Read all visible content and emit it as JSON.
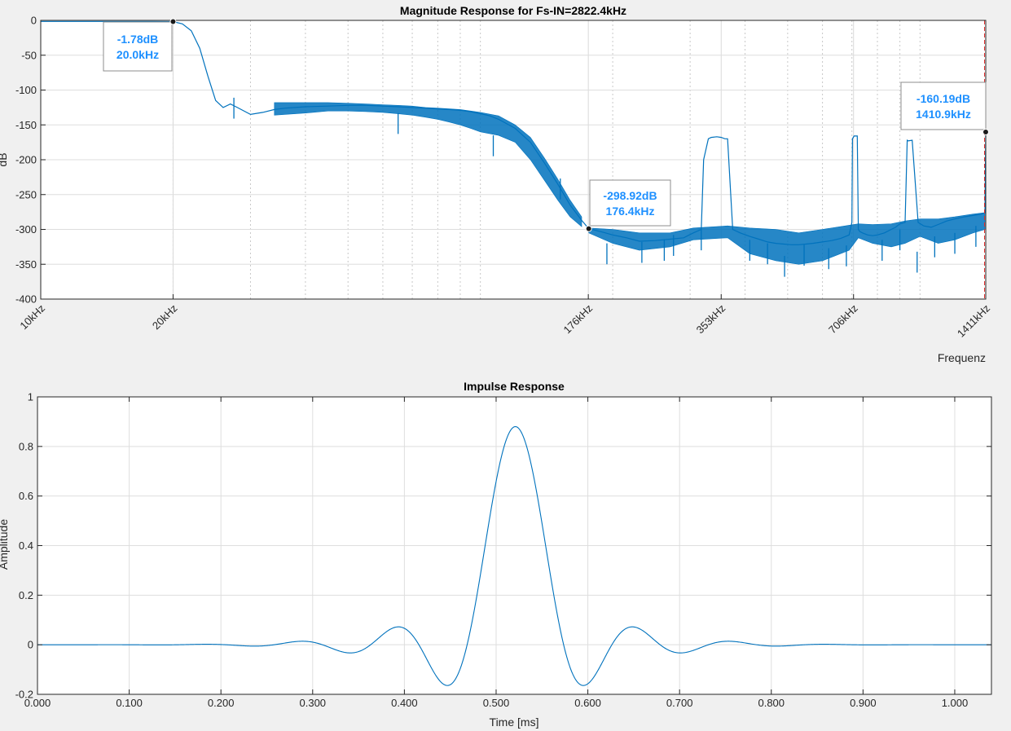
{
  "colors": {
    "line": "#0072bd",
    "datatip_text": "#1e90ff",
    "cursor": "#e03030",
    "background": "#f0f0f0",
    "axes_bg": "#ffffff"
  },
  "chart_data": [
    {
      "id": "magnitude",
      "type": "line",
      "title": "Magnitude Response for Fs-IN=2822.4kHz",
      "xlabel": "Frequenz",
      "ylabel": "dB",
      "x_scale": "log",
      "xlim_khz": [
        10,
        1411
      ],
      "ylim": [
        -400,
        0
      ],
      "y_ticks": [
        0,
        -50,
        -100,
        -150,
        -200,
        -250,
        -300,
        -350,
        -400
      ],
      "x_ticks": [
        {
          "value": 10,
          "label": "10kHz"
        },
        {
          "value": 20,
          "label": "20kHz"
        },
        {
          "value": 176,
          "label": "176kHz"
        },
        {
          "value": 353,
          "label": "353kHz"
        },
        {
          "value": 706,
          "label": "706kHz"
        },
        {
          "value": 1411,
          "label": "1411kHz"
        }
      ],
      "grid": true,
      "datatips": [
        {
          "x": 20.0,
          "y": -1.78,
          "db": "-1.78dB",
          "freq": "20.0kHz"
        },
        {
          "x": 176.4,
          "y": -298.92,
          "db": "-298.92dB",
          "freq": "176.4kHz"
        },
        {
          "x": 1410.9,
          "y": -160.19,
          "db": "-160.19dB",
          "freq": "1410.9kHz"
        }
      ],
      "series": [
        {
          "x": [
            10,
            15,
            18,
            20,
            21,
            22,
            23,
            24,
            25,
            26,
            27,
            28,
            30,
            32,
            34,
            36,
            40,
            45,
            50,
            55,
            60,
            65,
            70,
            75,
            80,
            85,
            90,
            95,
            100,
            105,
            110,
            120,
            130,
            140,
            150,
            160,
            170,
            176.4
          ],
          "y": [
            -1.5,
            -1.5,
            -1.6,
            -1.78,
            -5,
            -15,
            -40,
            -80,
            -115,
            -125,
            -120,
            -125,
            -135,
            -132,
            -128,
            -126,
            -124,
            -123,
            -122,
            -122,
            -123,
            -124,
            -125,
            -126,
            -127,
            -128,
            -129,
            -131,
            -134,
            -137,
            -142,
            -155,
            -175,
            -205,
            -235,
            -265,
            -287,
            -298.92
          ]
        },
        {
          "x": [
            176.4,
            190,
            200,
            215,
            230,
            250,
            270,
            290,
            305,
            318,
            322,
            330,
            335,
            345,
            353,
            360,
            365,
            375,
            390,
            410,
            430,
            450,
            470,
            490,
            510,
            530,
            550,
            570,
            600,
            630,
            660,
            690,
            700,
            702,
            708,
            720,
            724,
            730,
            740,
            760,
            780,
            800,
            830,
            860,
            880,
            900,
            925,
            935,
            940,
            960,
            990,
            1020,
            1060,
            1100,
            1150,
            1200,
            1260,
            1320,
            1380,
            1405,
            1410.9
          ],
          "y": [
            -298.92,
            -304,
            -308,
            -312,
            -317,
            -316,
            -314,
            -312,
            -305,
            -300,
            -200,
            -170,
            -168,
            -167,
            -168,
            -170,
            -170,
            -300,
            -305,
            -310,
            -314,
            -318,
            -320,
            -321,
            -322,
            -322,
            -321,
            -320,
            -318,
            -316,
            -313,
            -308,
            -290,
            -170,
            -166,
            -166,
            -300,
            -303,
            -305,
            -308,
            -309,
            -308,
            -305,
            -300,
            -297,
            -292,
            -290,
            -172,
            -173,
            -172,
            -290,
            -295,
            -297,
            -293,
            -288,
            -285,
            -282,
            -280,
            -278,
            -276,
            -160.19
          ]
        }
      ],
      "envelope": [
        {
          "x": [
            34,
            40,
            45,
            50,
            55,
            60,
            65,
            70,
            75,
            80,
            85,
            90,
            95,
            100,
            110,
            120,
            130,
            140,
            150,
            160,
            170
          ],
          "lo": [
            -136,
            -133,
            -130,
            -130,
            -131,
            -132,
            -134,
            -136,
            -139,
            -142,
            -146,
            -150,
            -155,
            -160,
            -165,
            -175,
            -200,
            -230,
            -258,
            -282,
            -296
          ],
          "hi": [
            -118,
            -118,
            -118,
            -119,
            -120,
            -121,
            -122,
            -123,
            -125,
            -126,
            -127,
            -128,
            -130,
            -132,
            -137,
            -150,
            -168,
            -198,
            -228,
            -258,
            -282
          ]
        },
        {
          "x": [
            176.4,
            200,
            230,
            270,
            305,
            365,
            410,
            470,
            530,
            600,
            690,
            724,
            780,
            860,
            925,
            1000,
            1100,
            1200,
            1320,
            1405
          ],
          "lo": [
            -305,
            -320,
            -330,
            -325,
            -315,
            -312,
            -335,
            -345,
            -350,
            -345,
            -330,
            -312,
            -320,
            -325,
            -320,
            -310,
            -320,
            -315,
            -305,
            -300
          ],
          "hi": [
            -298,
            -300,
            -305,
            -305,
            -298,
            -295,
            -298,
            -300,
            -305,
            -300,
            -294,
            -292,
            -293,
            -292,
            -288,
            -285,
            -285,
            -282,
            -278,
            -276
          ]
        }
      ],
      "notches": [
        {
          "x": 27.5,
          "y": -141
        },
        {
          "x": 65,
          "y": -163
        },
        {
          "x": 107,
          "y": -195
        },
        {
          "x": 152,
          "y": -257
        },
        {
          "x": 194,
          "y": -350
        },
        {
          "x": 233,
          "y": -348
        },
        {
          "x": 262,
          "y": -345
        },
        {
          "x": 275,
          "y": -338
        },
        {
          "x": 318,
          "y": -330
        },
        {
          "x": 410,
          "y": -345
        },
        {
          "x": 450,
          "y": -350
        },
        {
          "x": 492,
          "y": -368
        },
        {
          "x": 545,
          "y": -352
        },
        {
          "x": 620,
          "y": -357
        },
        {
          "x": 680,
          "y": -353
        },
        {
          "x": 820,
          "y": -345
        },
        {
          "x": 900,
          "y": -330
        },
        {
          "x": 985,
          "y": -362
        },
        {
          "x": 1080,
          "y": -340
        },
        {
          "x": 1200,
          "y": -335
        },
        {
          "x": 1340,
          "y": -325
        }
      ]
    },
    {
      "id": "impulse",
      "type": "line",
      "title": "Impulse Response",
      "xlabel": "Time [ms]",
      "ylabel": "Amplitude",
      "xlim": [
        0,
        1.04
      ],
      "ylim": [
        -0.2,
        1
      ],
      "x_ticks": [
        {
          "value": 0.0,
          "label": "0.000"
        },
        {
          "value": 0.1,
          "label": "0.100"
        },
        {
          "value": 0.2,
          "label": "0.200"
        },
        {
          "value": 0.3,
          "label": "0.300"
        },
        {
          "value": 0.4,
          "label": "0.400"
        },
        {
          "value": 0.5,
          "label": "0.500"
        },
        {
          "value": 0.6,
          "label": "0.600"
        },
        {
          "value": 0.7,
          "label": "0.700"
        },
        {
          "value": 0.8,
          "label": "0.800"
        },
        {
          "value": 0.9,
          "label": "0.900"
        },
        {
          "value": 1.0,
          "label": "1.000"
        }
      ],
      "y_ticks": [
        {
          "value": 1,
          "label": "1"
        },
        {
          "value": 0.8,
          "label": "0.8"
        },
        {
          "value": 0.6,
          "label": "0.6"
        },
        {
          "value": 0.4,
          "label": "0.4"
        },
        {
          "value": 0.2,
          "label": "0.2"
        },
        {
          "value": 0,
          "label": "0"
        },
        {
          "value": -0.2,
          "label": "-0.2"
        }
      ],
      "grid": true,
      "model": {
        "center_ms": 0.521,
        "peak": 0.88,
        "period_ms": 0.0526,
        "decay_ms": 0.12
      },
      "key_points": [
        {
          "x": 0.521,
          "y": 0.88
        },
        {
          "x": 0.495,
          "y": -0.185
        },
        {
          "x": 0.547,
          "y": -0.185
        },
        {
          "x": 0.464,
          "y": 0.105
        },
        {
          "x": 0.579,
          "y": 0.105
        },
        {
          "x": 0.415,
          "y": 0.05
        },
        {
          "x": 0.627,
          "y": 0.05
        },
        {
          "x": 0.368,
          "y": 0.025
        },
        {
          "x": 0.675,
          "y": 0.025
        }
      ]
    }
  ]
}
